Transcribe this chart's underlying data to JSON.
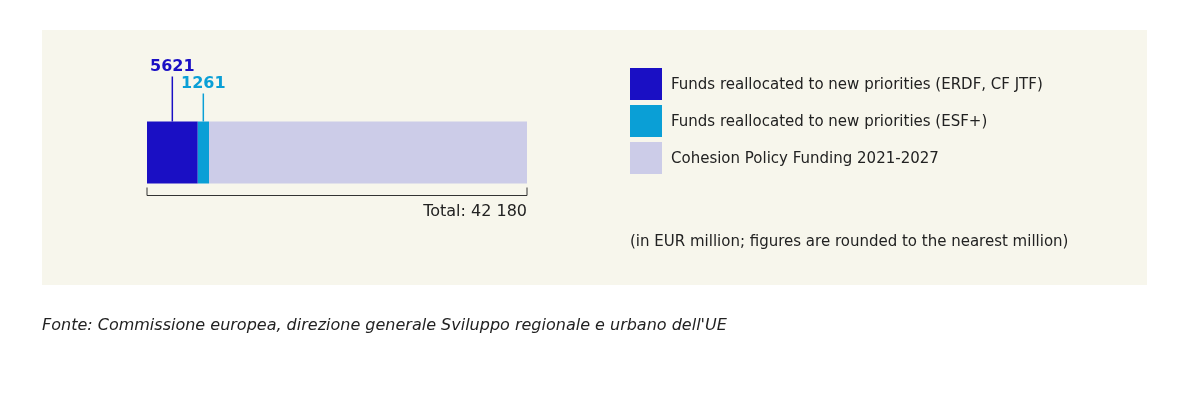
{
  "chart_data": {
    "type": "bar",
    "orientation": "horizontal",
    "stacked": true,
    "categories": [
      null
    ],
    "series": [
      {
        "name": "Funds reallocated to new priorities (ERDF, CF JTF)",
        "color": "#1a0fc4",
        "values": [
          5621
        ],
        "value_labels": [
          "5621"
        ]
      },
      {
        "name": "Funds reallocated to new priorities (ESF+)",
        "color": "#0a9fd6",
        "values": [
          1261
        ],
        "value_labels": [
          "1261"
        ]
      },
      {
        "name": "Cohesion Policy Funding 2021-2027",
        "color": "#cccce8",
        "values": [
          35298
        ],
        "value_labels": [
          null
        ]
      }
    ],
    "totals": [
      "Total: 42 180"
    ],
    "legend": "right",
    "annotations": [
      "(in EUR million; figures are rounded to the nearest million)",
      "Fonte: Commissione europea, direzione generale Sviluppo regionale e urbano dell'UE"
    ]
  }
}
